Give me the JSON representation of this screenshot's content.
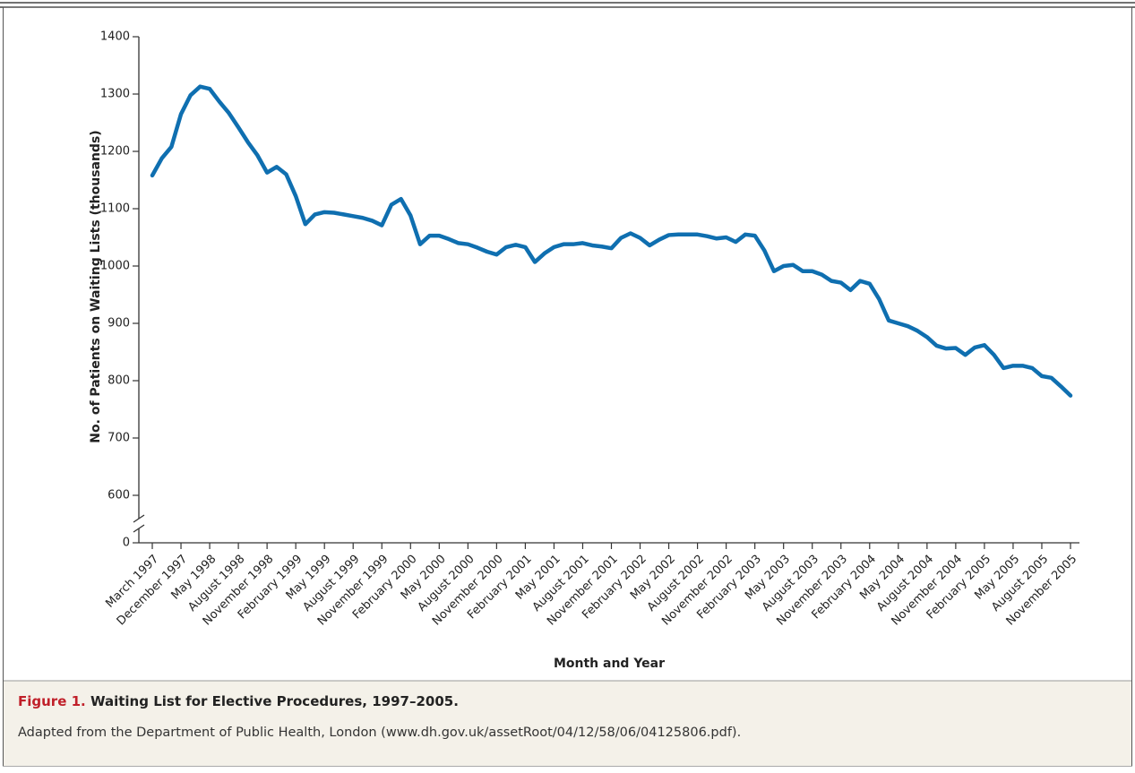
{
  "chart_data": {
    "type": "line",
    "x_label": "Month and Year",
    "y_label": "No. of Patients on Waiting Lists (thousands)",
    "categories": [
      "March 1997",
      null,
      null,
      "December 1997",
      null,
      null,
      "May 1998",
      null,
      null,
      "August 1998",
      null,
      null,
      "November 1998",
      null,
      null,
      "February 1999",
      null,
      null,
      "May 1999",
      null,
      null,
      "August 1999",
      null,
      null,
      "November 1999",
      null,
      null,
      "February 2000",
      null,
      null,
      "May 2000",
      null,
      null,
      "August 2000",
      null,
      null,
      "November 2000",
      null,
      null,
      "February 2001",
      null,
      null,
      "May 2001",
      null,
      null,
      "August 2001",
      null,
      null,
      "November 2001",
      null,
      null,
      "February 2002",
      null,
      null,
      "May 2002",
      null,
      null,
      "August 2002",
      null,
      null,
      "November 2002",
      null,
      null,
      "February 2003",
      null,
      null,
      "May 2003",
      null,
      null,
      "August 2003",
      null,
      null,
      "November 2003",
      null,
      null,
      "February 2004",
      null,
      null,
      "May 2004",
      null,
      null,
      "August 2004",
      null,
      null,
      "November 2004",
      null,
      null,
      "February 2005",
      null,
      null,
      "May 2005",
      null,
      null,
      "August 2005",
      null,
      null,
      "November 2005"
    ],
    "values": [
      1158,
      1188,
      1208,
      1265,
      1298,
      1313,
      1309,
      1287,
      1267,
      1242,
      1216,
      1193,
      1163,
      1173,
      1160,
      1122,
      1073,
      1090,
      1094,
      1093,
      1090,
      1087,
      1084,
      1079,
      1071,
      1107,
      1117,
      1088,
      1038,
      1053,
      1053,
      1047,
      1040,
      1038,
      1032,
      1025,
      1020,
      1033,
      1037,
      1033,
      1007,
      1022,
      1033,
      1038,
      1038,
      1040,
      1036,
      1034,
      1031,
      1049,
      1057,
      1049,
      1036,
      1046,
      1054,
      1055,
      1055,
      1055,
      1052,
      1048,
      1050,
      1042,
      1055,
      1053,
      1027,
      991,
      1000,
      1002,
      991,
      991,
      985,
      974,
      971,
      958,
      974,
      969,
      942,
      905,
      900,
      895,
      887,
      876,
      861,
      856,
      857,
      845,
      858,
      862,
      845,
      822,
      826,
      826,
      822,
      808,
      805,
      790,
      774
    ],
    "color": "#0f6fb0",
    "ylim": [
      0,
      1400
    ],
    "axis_break": [
      0,
      600
    ],
    "yticks": [
      0,
      600,
      700,
      800,
      900,
      1000,
      1100,
      1200,
      1300,
      1400
    ]
  },
  "caption": {
    "label": "Figure 1.",
    "title": "Waiting List for Elective Procedures, 1997–2005.",
    "source": "Adapted from the Department of Public Health, London (www.dh.gov.uk/assetRoot/04/12/58/06/04125806.pdf)."
  }
}
